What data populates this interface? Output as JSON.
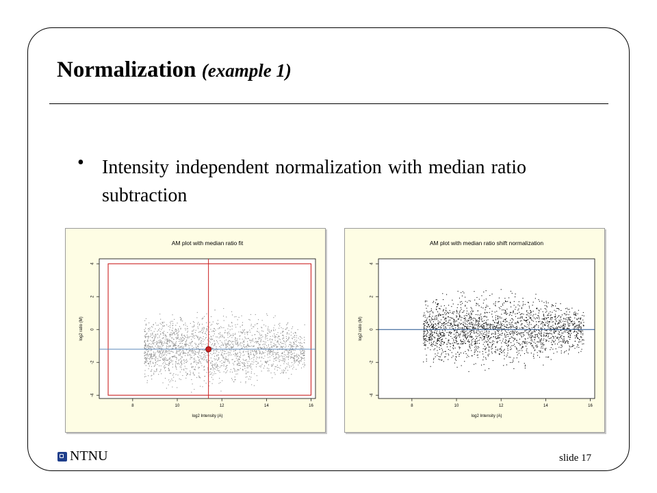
{
  "slide": {
    "title": "Normalization",
    "title_suffix": "(example 1)",
    "bullet": "Intensity independent normalization with median ratio subtraction",
    "logo_text": "NTNU",
    "slide_number": "slide 17"
  },
  "colors": {
    "panel_background": "#fefde4",
    "fit_red": "#cc2222",
    "median_line_blue": "#5a87b8",
    "zero_line_blue": "#1f4f8c",
    "points_left": "#8a8a8a",
    "points_right": "#000000"
  },
  "chart_data": [
    {
      "type": "scatter",
      "title": "AM plot with median ratio fit",
      "xlabel": "log2 Intensity (A)",
      "ylabel": "log2 ratio (M)",
      "xlim": [
        6.5,
        16.2
      ],
      "ylim": [
        -4.2,
        4.3
      ],
      "xticks": [
        8,
        10,
        12,
        14,
        16
      ],
      "yticks": [
        -4,
        -2,
        0,
        2,
        4
      ],
      "grid": false,
      "point_cloud": {
        "x_range": [
          8.5,
          15.7
        ],
        "center_y": -1.2,
        "spread_y": 1.9,
        "approx_points": 3500
      },
      "median_ratio": -1.2,
      "median_point": {
        "x": 11.4,
        "y": -1.2
      },
      "fit_box": {
        "x": [
          6.9,
          16.0
        ],
        "y": [
          -4.0,
          4.0
        ]
      },
      "vertical_line_x": 11.4
    },
    {
      "type": "scatter",
      "title": "AM plot with median ratio shift normalization",
      "xlabel": "log2 Intensity (A)",
      "ylabel": "log2 ratio (M)",
      "xlim": [
        6.5,
        16.2
      ],
      "ylim": [
        -4.2,
        4.3
      ],
      "xticks": [
        8,
        10,
        12,
        14,
        16
      ],
      "yticks": [
        -4,
        -2,
        0,
        2,
        4
      ],
      "grid": false,
      "point_cloud": {
        "x_range": [
          8.5,
          15.7
        ],
        "center_y": 0.0,
        "spread_y": 1.9,
        "approx_points": 3500
      },
      "reference_line_y": 0
    }
  ]
}
